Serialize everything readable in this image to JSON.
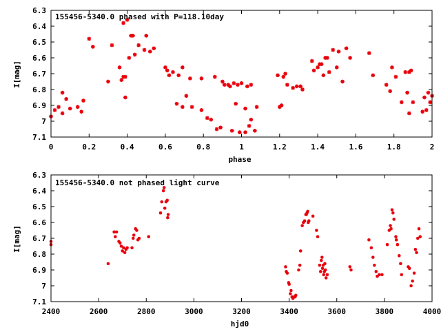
{
  "chart_data": [
    {
      "type": "scatter",
      "title": "155456-5340.0 phased with P=118.10day",
      "xlabel": "phase",
      "ylabel": "I[mag]",
      "xlim": [
        0,
        2
      ],
      "ylim": [
        7.1,
        6.3
      ],
      "y_inverted": true,
      "grid": false,
      "marker_color": "#e8000b",
      "xticks": [
        "0",
        "0.2",
        "0.4",
        "0.6",
        "0.8",
        "1",
        "1.2",
        "1.4",
        "1.6",
        "1.8",
        "2"
      ],
      "yticks": [
        "6.3",
        "6.4",
        "6.5",
        "6.6",
        "6.7",
        "6.8",
        "6.9",
        "7",
        "7.1"
      ],
      "series": [
        {
          "points": [
            [
              0.0,
              6.97
            ],
            [
              0.02,
              6.93
            ],
            [
              0.04,
              6.91
            ],
            [
              0.06,
              6.82
            ],
            [
              0.06,
              6.95
            ],
            [
              0.08,
              6.86
            ],
            [
              0.1,
              6.92
            ],
            [
              0.14,
              6.91
            ],
            [
              0.16,
              6.94
            ],
            [
              0.17,
              6.87
            ],
            [
              0.2,
              6.48
            ],
            [
              0.22,
              6.53
            ],
            [
              0.3,
              6.75
            ],
            [
              0.32,
              6.52
            ],
            [
              0.36,
              6.66
            ],
            [
              0.37,
              6.74
            ],
            [
              0.38,
              6.38
            ],
            [
              0.38,
              6.72
            ],
            [
              0.39,
              6.85
            ],
            [
              0.39,
              6.72
            ],
            [
              0.4,
              6.36
            ],
            [
              0.41,
              6.6
            ],
            [
              0.42,
              6.46
            ],
            [
              0.43,
              6.46
            ],
            [
              0.44,
              6.58
            ],
            [
              0.46,
              6.52
            ],
            [
              0.49,
              6.55
            ],
            [
              0.5,
              6.46
            ],
            [
              0.52,
              6.56
            ],
            [
              0.54,
              6.54
            ],
            [
              0.6,
              6.66
            ],
            [
              0.61,
              6.68
            ],
            [
              0.62,
              6.71
            ],
            [
              0.64,
              6.69
            ],
            [
              0.66,
              6.89
            ],
            [
              0.67,
              6.71
            ],
            [
              0.69,
              6.66
            ],
            [
              0.69,
              6.91
            ],
            [
              0.71,
              6.84
            ],
            [
              0.73,
              6.73
            ],
            [
              0.74,
              6.91
            ],
            [
              0.79,
              6.73
            ],
            [
              0.79,
              6.93
            ],
            [
              0.82,
              6.98
            ],
            [
              0.84,
              6.99
            ],
            [
              0.86,
              6.72
            ],
            [
              0.87,
              7.05
            ],
            [
              0.89,
              7.04
            ],
            [
              0.9,
              6.75
            ],
            [
              0.91,
              6.77
            ],
            [
              0.93,
              6.77
            ],
            [
              0.94,
              6.78
            ],
            [
              0.95,
              7.06
            ],
            [
              0.96,
              6.76
            ],
            [
              0.97,
              6.89
            ],
            [
              0.98,
              6.77
            ],
            [
              0.99,
              7.07
            ],
            [
              1.0,
              6.76
            ],
            [
              1.02,
              6.92
            ],
            [
              1.02,
              7.07
            ],
            [
              1.03,
              6.78
            ],
            [
              1.04,
              7.03
            ],
            [
              1.05,
              6.99
            ],
            [
              1.05,
              6.77
            ],
            [
              1.07,
              7.06
            ],
            [
              1.08,
              6.91
            ],
            [
              1.19,
              6.71
            ],
            [
              1.2,
              6.91
            ],
            [
              1.21,
              6.9
            ],
            [
              1.22,
              6.72
            ],
            [
              1.23,
              6.7
            ],
            [
              1.24,
              6.77
            ],
            [
              1.27,
              6.79
            ],
            [
              1.29,
              6.78
            ],
            [
              1.31,
              6.78
            ],
            [
              1.32,
              6.8
            ],
            [
              1.37,
              6.62
            ],
            [
              1.38,
              6.68
            ],
            [
              1.4,
              6.66
            ],
            [
              1.41,
              6.64
            ],
            [
              1.42,
              6.64
            ],
            [
              1.43,
              6.71
            ],
            [
              1.44,
              6.6
            ],
            [
              1.45,
              6.6
            ],
            [
              1.46,
              6.69
            ],
            [
              1.48,
              6.55
            ],
            [
              1.5,
              6.66
            ],
            [
              1.51,
              6.56
            ],
            [
              1.53,
              6.75
            ],
            [
              1.55,
              6.54
            ],
            [
              1.57,
              6.6
            ],
            [
              1.67,
              6.57
            ],
            [
              1.69,
              6.71
            ],
            [
              1.76,
              6.77
            ],
            [
              1.78,
              6.81
            ],
            [
              1.79,
              6.66
            ],
            [
              1.81,
              6.72
            ],
            [
              1.84,
              6.88
            ],
            [
              1.86,
              6.69
            ],
            [
              1.87,
              6.82
            ],
            [
              1.88,
              6.95
            ],
            [
              1.88,
              6.69
            ],
            [
              1.89,
              6.68
            ],
            [
              1.9,
              6.88
            ],
            [
              1.95,
              6.94
            ],
            [
              1.96,
              6.85
            ],
            [
              1.97,
              6.93
            ],
            [
              1.98,
              6.82
            ],
            [
              1.99,
              6.88
            ],
            [
              2.0,
              6.84
            ]
          ]
        }
      ]
    },
    {
      "type": "scatter",
      "title": "155456-5340.0 not phased light curve",
      "xlabel": "hjd0",
      "ylabel": "I[mag]",
      "xlim": [
        2400,
        4000
      ],
      "ylim": [
        7.1,
        6.3
      ],
      "y_inverted": true,
      "grid": false,
      "marker_color": "#e8000b",
      "xticks": [
        "2400",
        "2600",
        "2800",
        "3000",
        "3200",
        "3400",
        "3600",
        "3800",
        "4000"
      ],
      "yticks": [
        "6.3",
        "6.4",
        "6.5",
        "6.6",
        "6.7",
        "6.8",
        "6.9",
        "7",
        "7.1"
      ],
      "series": [
        {
          "points": [
            [
              2400,
              6.72
            ],
            [
              2400,
              6.74
            ],
            [
              2640,
              6.86
            ],
            [
              2665,
              6.66
            ],
            [
              2670,
              6.69
            ],
            [
              2675,
              6.66
            ],
            [
              2685,
              6.72
            ],
            [
              2690,
              6.73
            ],
            [
              2695,
              6.75
            ],
            [
              2700,
              6.78
            ],
            [
              2705,
              6.76
            ],
            [
              2710,
              6.79
            ],
            [
              2715,
              6.77
            ],
            [
              2720,
              6.76
            ],
            [
              2740,
              6.76
            ],
            [
              2745,
              6.7
            ],
            [
              2748,
              6.68
            ],
            [
              2755,
              6.64
            ],
            [
              2760,
              6.65
            ],
            [
              2765,
              6.71
            ],
            [
              2770,
              6.7
            ],
            [
              2810,
              6.69
            ],
            [
              2860,
              6.54
            ],
            [
              2865,
              6.47
            ],
            [
              2872,
              6.4
            ],
            [
              2875,
              6.38
            ],
            [
              2878,
              6.51
            ],
            [
              2883,
              6.47
            ],
            [
              2888,
              6.46
            ],
            [
              2890,
              6.57
            ],
            [
              2892,
              6.55
            ],
            [
              3385,
              6.88
            ],
            [
              3388,
              6.91
            ],
            [
              3392,
              6.92
            ],
            [
              3398,
              6.98
            ],
            [
              3400,
              6.99
            ],
            [
              3405,
              7.05
            ],
            [
              3408,
              7.03
            ],
            [
              3412,
              7.07
            ],
            [
              3416,
              7.08
            ],
            [
              3420,
              7.07
            ],
            [
              3425,
              7.07
            ],
            [
              3428,
              7.06
            ],
            [
              3440,
              6.9
            ],
            [
              3445,
              6.87
            ],
            [
              3448,
              6.78
            ],
            [
              3455,
              6.62
            ],
            [
              3460,
              6.6
            ],
            [
              3465,
              6.59
            ],
            [
              3470,
              6.55
            ],
            [
              3472,
              6.55
            ],
            [
              3475,
              6.54
            ],
            [
              3478,
              6.53
            ],
            [
              3480,
              6.6
            ],
            [
              3483,
              6.59
            ],
            [
              3500,
              6.56
            ],
            [
              3515,
              6.65
            ],
            [
              3520,
              6.69
            ],
            [
              3528,
              6.87
            ],
            [
              3532,
              6.91
            ],
            [
              3535,
              6.84
            ],
            [
              3538,
              6.82
            ],
            [
              3540,
              6.89
            ],
            [
              3543,
              6.87
            ],
            [
              3545,
              6.93
            ],
            [
              3548,
              6.91
            ],
            [
              3550,
              6.86
            ],
            [
              3552,
              6.9
            ],
            [
              3555,
              6.95
            ],
            [
              3560,
              6.93
            ],
            [
              3655,
              6.88
            ],
            [
              3660,
              6.9
            ],
            [
              3735,
              6.71
            ],
            [
              3745,
              6.76
            ],
            [
              3752,
              6.82
            ],
            [
              3758,
              6.87
            ],
            [
              3765,
              6.91
            ],
            [
              3770,
              6.94
            ],
            [
              3778,
              6.93
            ],
            [
              3790,
              6.93
            ],
            [
              3812,
              6.74
            ],
            [
              3820,
              6.65
            ],
            [
              3825,
              6.62
            ],
            [
              3828,
              6.64
            ],
            [
              3832,
              6.52
            ],
            [
              3836,
              6.54
            ],
            [
              3840,
              6.58
            ],
            [
              3848,
              6.69
            ],
            [
              3850,
              6.71
            ],
            [
              3855,
              6.74
            ],
            [
              3862,
              6.81
            ],
            [
              3868,
              6.86
            ],
            [
              3872,
              6.93
            ],
            [
              3900,
              6.88
            ],
            [
              3905,
              6.89
            ],
            [
              3912,
              7.0
            ],
            [
              3918,
              6.97
            ],
            [
              3925,
              6.92
            ],
            [
              3930,
              6.77
            ],
            [
              3935,
              6.79
            ],
            [
              3940,
              6.7
            ],
            [
              3945,
              6.64
            ],
            [
              3950,
              6.69
            ]
          ]
        }
      ]
    }
  ]
}
